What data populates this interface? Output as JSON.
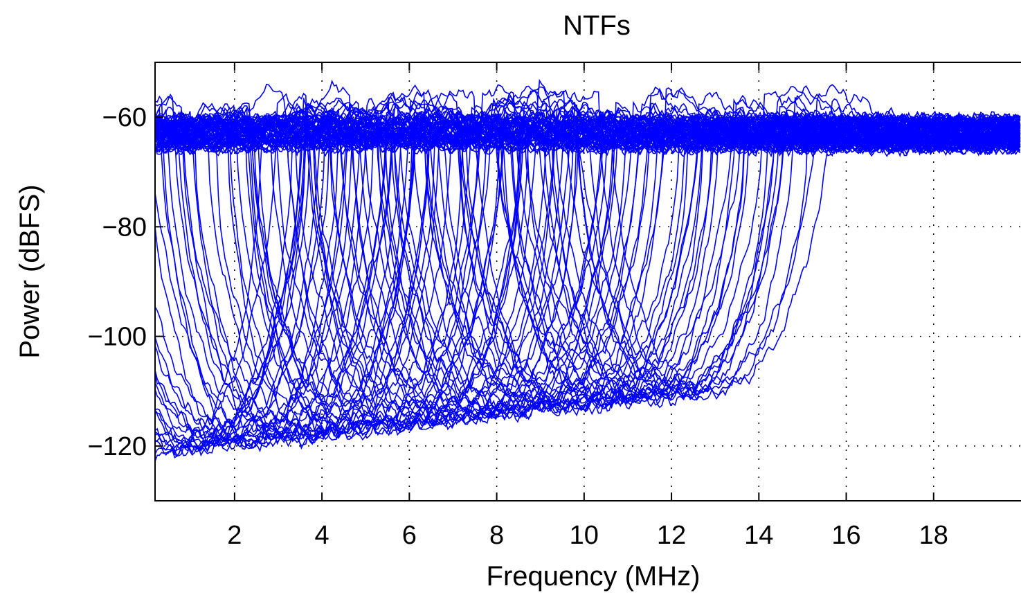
{
  "chart_data": {
    "type": "line",
    "title": "NTFs",
    "xlabel": "Frequency (MHz)",
    "ylabel": "Power (dBFS)",
    "xlim": [
      0.18,
      20
    ],
    "ylim": [
      -130,
      -50
    ],
    "x_ticks": [
      2,
      4,
      6,
      8,
      10,
      12,
      14,
      16,
      18
    ],
    "x_tick_labels": [
      "2",
      "4",
      "6",
      "8",
      "10",
      "12",
      "14",
      "16",
      "18"
    ],
    "y_ticks": [
      -120,
      -100,
      -80,
      -60
    ],
    "y_tick_labels": [
      "−120",
      "−100",
      "−80",
      "−60"
    ],
    "grid": true,
    "grid_style": "dotted",
    "line_color": "#0000ff",
    "box": true,
    "legend": "none",
    "series_count": 100,
    "notch_frequency_range_mhz": [
      0.3,
      12.8
    ],
    "notch_depth_range_dbfs": [
      -121,
      -110
    ],
    "passband_level_dbfs": -63,
    "passband_peak_dbfs": -55
  }
}
